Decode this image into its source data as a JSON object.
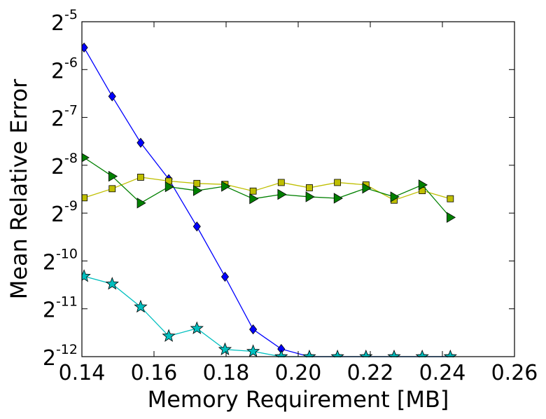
{
  "chart_data": {
    "type": "line",
    "xlabel": "Memory Requirement [MB]",
    "ylabel": "Mean Relative Error",
    "xlim": [
      0.14,
      0.26
    ],
    "ylim_log2": [
      -12,
      -5
    ],
    "y_scale": "log2",
    "grid": false,
    "x_ticks": [
      "0.14",
      "0.16",
      "0.18",
      "0.20",
      "0.22",
      "0.24",
      "0.26"
    ],
    "y_ticks": [
      {
        "base": "2",
        "exp": "-5",
        "value": -5
      },
      {
        "base": "2",
        "exp": "-6",
        "value": -6
      },
      {
        "base": "2",
        "exp": "-7",
        "value": -7
      },
      {
        "base": "2",
        "exp": "-8",
        "value": -8
      },
      {
        "base": "2",
        "exp": "-9",
        "value": -9
      },
      {
        "base": "2",
        "exp": "-10",
        "value": -10
      },
      {
        "base": "2",
        "exp": "-11",
        "value": -11
      },
      {
        "base": "2",
        "exp": "-12",
        "value": -12
      }
    ],
    "x_tick_values": [
      0.14,
      0.16,
      0.18,
      0.2,
      0.22,
      0.24,
      0.26
    ],
    "series": [
      {
        "color": "#0000ff",
        "marker": "diamond",
        "x": [
          0.1406,
          0.1484,
          0.1563,
          0.1641,
          0.1719,
          0.1797,
          0.1875,
          0.1953,
          0.2031,
          0.2109,
          0.2188,
          0.2266,
          0.2344,
          0.2422
        ],
        "y_log2": [
          -5.54,
          -6.56,
          -7.53,
          -8.29,
          -9.28,
          -10.33,
          -11.43,
          -11.84,
          -12.0,
          -12.0,
          -12.0,
          -12.0,
          -12.0,
          -12.0
        ]
      },
      {
        "color": "#bfbf00",
        "marker": "square",
        "x": [
          0.1406,
          0.1484,
          0.1563,
          0.1641,
          0.1719,
          0.1797,
          0.1875,
          0.1953,
          0.2031,
          0.2109,
          0.2188,
          0.2266,
          0.2344,
          0.2422
        ],
        "y_log2": [
          -8.68,
          -8.49,
          -8.25,
          -8.33,
          -8.38,
          -8.4,
          -8.54,
          -8.36,
          -8.47,
          -8.36,
          -8.41,
          -8.73,
          -8.53,
          -8.7
        ]
      },
      {
        "color": "#008000",
        "marker": "triangle-right",
        "x": [
          0.1406,
          0.1484,
          0.1563,
          0.1641,
          0.1719,
          0.1797,
          0.1875,
          0.1953,
          0.2031,
          0.2109,
          0.2188,
          0.2266,
          0.2344,
          0.2422
        ],
        "y_log2": [
          -7.84,
          -8.23,
          -8.79,
          -8.45,
          -8.53,
          -8.44,
          -8.7,
          -8.61,
          -8.66,
          -8.69,
          -8.48,
          -8.66,
          -8.41,
          -9.09
        ]
      },
      {
        "color": "#00bfbf",
        "marker": "star",
        "x": [
          0.1406,
          0.1484,
          0.1563,
          0.1641,
          0.1719,
          0.1797,
          0.1875,
          0.1953,
          0.2031,
          0.2109,
          0.2188,
          0.2266,
          0.2344,
          0.2422
        ],
        "y_log2": [
          -10.32,
          -10.48,
          -10.96,
          -11.57,
          -11.41,
          -11.85,
          -11.89,
          -12.0,
          -12.0,
          -12.0,
          -12.0,
          -12.0,
          -12.0,
          -12.0
        ]
      }
    ]
  }
}
